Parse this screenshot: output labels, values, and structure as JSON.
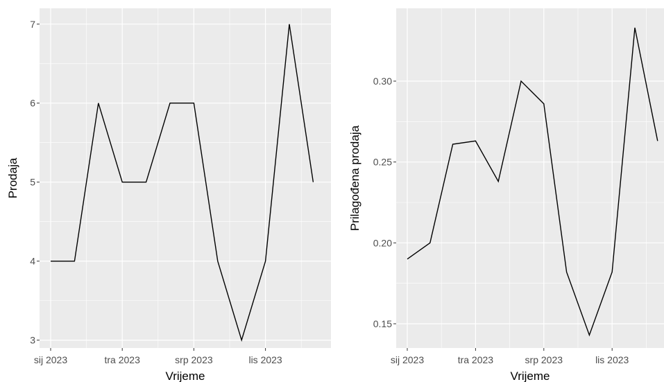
{
  "chart_data": [
    {
      "type": "line",
      "title": "",
      "xlabel": "Vrijeme",
      "ylabel": "Prodaja",
      "x": [
        "2023-01",
        "2023-02",
        "2023-03",
        "2023-04",
        "2023-05",
        "2023-06",
        "2023-07",
        "2023-08",
        "2023-09",
        "2023-10",
        "2023-11",
        "2023-12"
      ],
      "x_ticks": [
        "sij 2023",
        "tra 2023",
        "srp 2023",
        "lis 2023"
      ],
      "y_ticks": [
        "3",
        "4",
        "5",
        "6",
        "7"
      ],
      "ylim": [
        2.9,
        7.2
      ],
      "series": [
        {
          "values": [
            4,
            4,
            6,
            5,
            5,
            6,
            6,
            4,
            3,
            4,
            7,
            5
          ]
        }
      ],
      "grid": true,
      "line_color": "#000000",
      "panel_color": "#EBEBEB",
      "grid_color": "#FFFFFF"
    },
    {
      "type": "line",
      "title": "",
      "xlabel": "Vrijeme",
      "ylabel": "Prilagođena prodaja",
      "x": [
        "2023-01",
        "2023-02",
        "2023-03",
        "2023-04",
        "2023-05",
        "2023-06",
        "2023-07",
        "2023-08",
        "2023-09",
        "2023-10",
        "2023-11",
        "2023-12"
      ],
      "x_ticks": [
        "sij 2023",
        "tra 2023",
        "srp 2023",
        "lis 2023"
      ],
      "y_ticks": [
        "0.15",
        "0.20",
        "0.25",
        "0.30"
      ],
      "ylim": [
        0.135,
        0.345
      ],
      "series": [
        {
          "values": [
            0.19,
            0.2,
            0.261,
            0.263,
            0.238,
            0.3,
            0.286,
            0.182,
            0.143,
            0.182,
            0.333,
            0.263
          ]
        }
      ],
      "grid": true,
      "line_color": "#000000",
      "panel_color": "#EBEBEB",
      "grid_color": "#FFFFFF"
    }
  ]
}
